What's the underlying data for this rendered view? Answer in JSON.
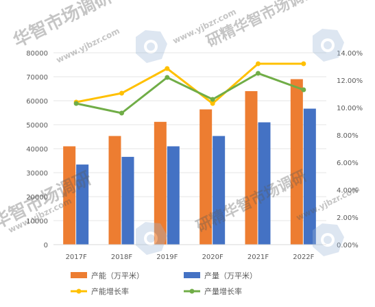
{
  "watermark": {
    "brand": "华智市场调研",
    "brand_mirror": "研精华智市场调研",
    "url": "www.yjbzr.com",
    "url_alt": "www.yjbzr.com"
  },
  "chart_data": {
    "type": "bar",
    "categories": [
      "2017F",
      "2018F",
      "2019F",
      "2020F",
      "2021F",
      "2022F"
    ],
    "series": [
      {
        "name": "产能（万平米）",
        "type": "bar",
        "axis": "left",
        "color": "#ED7D31",
        "values": [
          41000,
          45300,
          51200,
          56400,
          64000,
          69000
        ]
      },
      {
        "name": "产量（万平米）",
        "type": "bar",
        "axis": "left",
        "color": "#4472C4",
        "values": [
          33400,
          36600,
          41000,
          45300,
          51000,
          56700
        ]
      },
      {
        "name": "产能增长率",
        "type": "line",
        "axis": "right",
        "color": "#FFC000",
        "values": [
          10.4,
          11.05,
          12.85,
          10.3,
          13.2,
          13.2
        ]
      },
      {
        "name": "产量增长率",
        "type": "line",
        "axis": "right",
        "color": "#70AD47",
        "values": [
          10.3,
          9.6,
          12.2,
          10.6,
          12.5,
          11.3
        ]
      }
    ],
    "ylim": [
      0,
      80000
    ],
    "yticks": [
      "0",
      "10000",
      "20000",
      "30000",
      "40000",
      "50000",
      "60000",
      "70000",
      "80000"
    ],
    "y2lim": [
      0,
      14
    ],
    "y2ticks": [
      "0.00%",
      "2.00%",
      "4.00%",
      "6.00%",
      "8.00%",
      "10.00%",
      "12.00%",
      "14.00%"
    ],
    "grid": true,
    "legend_position": "bottom",
    "title": "",
    "xlabel": "",
    "ylabel": ""
  }
}
